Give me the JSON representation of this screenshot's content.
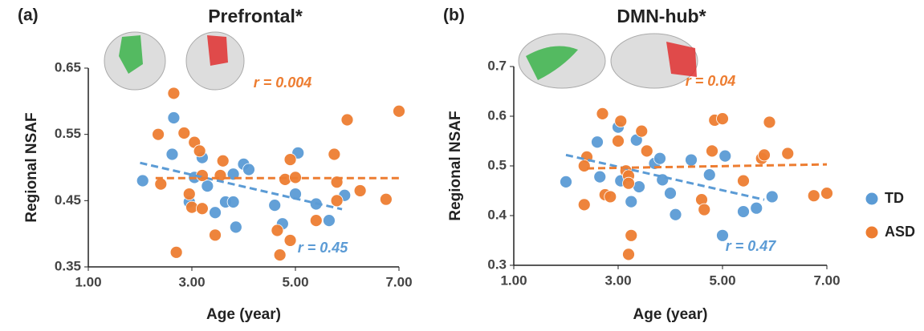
{
  "chart_data": [
    {
      "type": "scatter",
      "panel_label": "(a)",
      "title": "Prefrontal*",
      "x_label": "Age (year)",
      "y_label": "Regional NSAF",
      "xlim": [
        1,
        7
      ],
      "xticks": [
        {
          "value": 1,
          "label": "1.00"
        },
        {
          "value": 3,
          "label": "3.00"
        },
        {
          "value": 5,
          "label": "5.00"
        },
        {
          "value": 7,
          "label": "7.00"
        }
      ],
      "ylim": [
        0.35,
        0.65
      ],
      "yticks": [
        0.35,
        0.45,
        0.55,
        0.65
      ],
      "series": [
        {
          "name": "TD",
          "color": "#5b9bd5",
          "x": [
            2.05,
            2.62,
            2.65,
            2.95,
            3.05,
            3.2,
            3.3,
            3.45,
            3.65,
            3.8,
            3.85,
            3.8,
            4.0,
            4.1,
            4.6,
            4.75,
            5.0,
            5.05,
            5.4,
            5.65,
            5.95
          ],
          "values": [
            0.48,
            0.52,
            0.575,
            0.448,
            0.485,
            0.515,
            0.472,
            0.432,
            0.448,
            0.448,
            0.41,
            0.49,
            0.505,
            0.497,
            0.443,
            0.415,
            0.46,
            0.522,
            0.445,
            0.42,
            0.458
          ],
          "trend": {
            "x": [
              2.0,
              5.9
            ],
            "y": [
              0.507,
              0.437
            ]
          },
          "annotation": "r = 0.45"
        },
        {
          "name": "ASD",
          "color": "#ed7d31",
          "x": [
            2.35,
            2.4,
            2.65,
            2.7,
            2.85,
            2.95,
            3.0,
            3.05,
            3.15,
            3.2,
            3.2,
            3.45,
            3.55,
            3.6,
            4.65,
            4.7,
            4.8,
            4.9,
            4.9,
            5.0,
            5.4,
            5.75,
            5.8,
            5.8,
            6.0,
            6.25,
            6.75,
            7.0
          ],
          "values": [
            0.55,
            0.475,
            0.612,
            0.372,
            0.552,
            0.46,
            0.44,
            0.538,
            0.525,
            0.488,
            0.438,
            0.398,
            0.488,
            0.51,
            0.405,
            0.368,
            0.482,
            0.39,
            0.512,
            0.485,
            0.42,
            0.52,
            0.478,
            0.45,
            0.572,
            0.465,
            0.452,
            0.585
          ],
          "trend": {
            "x": [
              2.3,
              7.0
            ],
            "y": [
              0.484,
              0.484
            ]
          },
          "annotation": "r = 0.004"
        }
      ]
    },
    {
      "type": "scatter",
      "panel_label": "(b)",
      "title": "DMN-hub*",
      "x_label": "Age (year)",
      "y_label": "Regional NSAF",
      "xlim": [
        1,
        7
      ],
      "xticks": [
        {
          "value": 1,
          "label": "1.00"
        },
        {
          "value": 3,
          "label": "3.00"
        },
        {
          "value": 5,
          "label": "5.00"
        },
        {
          "value": 7,
          "label": "7.00"
        }
      ],
      "ylim": [
        0.3,
        0.7
      ],
      "yticks": [
        0.3,
        0.4,
        0.5,
        0.6,
        0.7
      ],
      "series": [
        {
          "name": "TD",
          "color": "#5b9bd5",
          "x": [
            2.0,
            2.6,
            2.65,
            3.0,
            3.05,
            3.25,
            3.35,
            3.4,
            3.7,
            3.8,
            3.85,
            4.0,
            4.1,
            4.4,
            4.75,
            5.0,
            5.05,
            5.4,
            5.65,
            5.95
          ],
          "values": [
            0.468,
            0.548,
            0.478,
            0.578,
            0.47,
            0.428,
            0.552,
            0.458,
            0.505,
            0.515,
            0.472,
            0.445,
            0.402,
            0.512,
            0.482,
            0.36,
            0.52,
            0.408,
            0.415,
            0.438
          ],
          "trend": {
            "x": [
              2.0,
              5.8
            ],
            "y": [
              0.522,
              0.432
            ]
          },
          "annotation": "r = 0.47"
        },
        {
          "name": "ASD",
          "color": "#ed7d31",
          "x": [
            2.35,
            2.4,
            2.35,
            2.7,
            2.75,
            2.85,
            3.0,
            3.05,
            3.15,
            3.2,
            3.2,
            3.25,
            3.2,
            3.45,
            3.55,
            4.6,
            4.65,
            4.8,
            4.85,
            5.0,
            5.4,
            5.75,
            5.8,
            5.9,
            6.25,
            6.75,
            7.0
          ],
          "values": [
            0.422,
            0.518,
            0.5,
            0.605,
            0.442,
            0.438,
            0.55,
            0.59,
            0.49,
            0.48,
            0.465,
            0.36,
            0.322,
            0.57,
            0.53,
            0.432,
            0.412,
            0.53,
            0.592,
            0.595,
            0.47,
            0.515,
            0.522,
            0.588,
            0.525,
            0.44,
            0.445
          ],
          "trend": {
            "x": [
              2.4,
              7.0
            ],
            "y": [
              0.495,
              0.503
            ]
          },
          "annotation": "r = 0.04"
        }
      ]
    }
  ]
}
